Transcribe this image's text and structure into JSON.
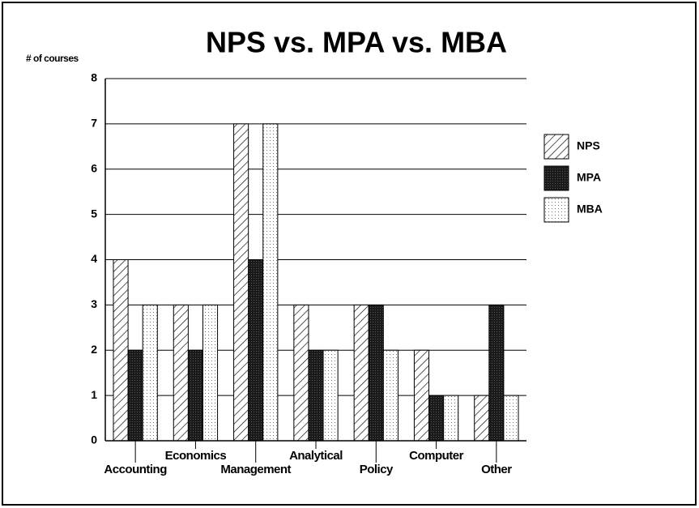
{
  "chart_data": {
    "type": "bar",
    "title": "NPS vs. MPA vs. MBA",
    "y_label": "# of courses",
    "categories": [
      "Accounting",
      "Economics",
      "Management",
      "Analytical",
      "Policy",
      "Computer",
      "Other"
    ],
    "series": [
      {
        "name": "NPS",
        "color": "#ffffff",
        "values": [
          4,
          3,
          7,
          3,
          3,
          2,
          1
        ]
      },
      {
        "name": "MPA",
        "color": "#1a1a1a",
        "values": [
          2,
          2,
          4,
          2,
          3,
          1,
          3
        ]
      },
      {
        "name": "MBA",
        "color": "#ffffff",
        "values": [
          3,
          3,
          7,
          2,
          2,
          1,
          1
        ]
      }
    ],
    "ylim": [
      0,
      8
    ],
    "yticks": [
      0,
      1,
      2,
      3,
      4,
      5,
      6,
      7,
      8
    ],
    "grid": true,
    "legend": "right"
  }
}
